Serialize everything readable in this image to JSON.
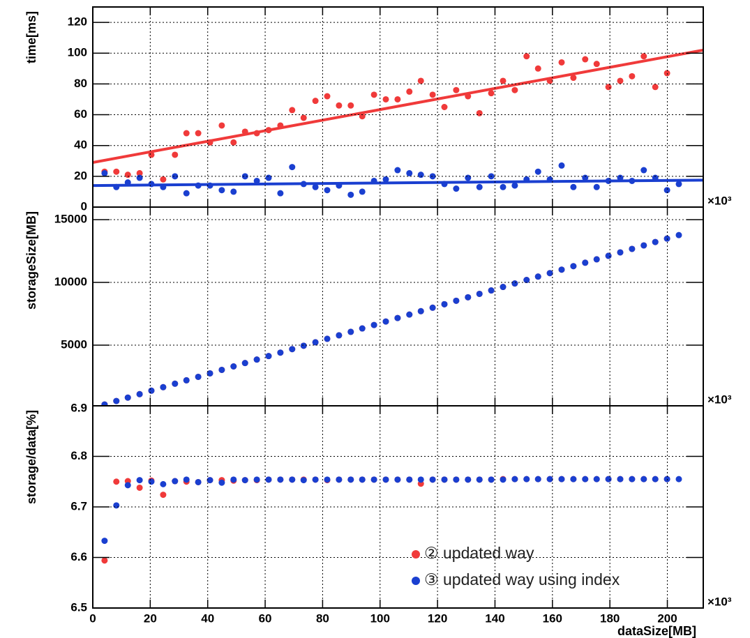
{
  "chart_data": [
    {
      "type": "scatter",
      "y_label": "time[ms]",
      "x_exponent": "×10³",
      "xlim": [
        0,
        212.5
      ],
      "xticks": [
        0,
        20,
        40,
        60,
        80,
        100,
        120,
        140,
        160,
        180,
        200
      ],
      "ylim": [
        0,
        130
      ],
      "yticks": [
        0,
        20,
        40,
        60,
        80,
        100,
        120
      ],
      "grid": true,
      "x": [
        4.1,
        8.2,
        12.2,
        16.3,
        20.4,
        24.5,
        28.6,
        32.6,
        36.7,
        40.8,
        44.9,
        49.0,
        53.0,
        57.1,
        61.2,
        65.3,
        69.4,
        73.4,
        77.5,
        81.6,
        85.7,
        89.8,
        93.8,
        97.9,
        102.0,
        106.1,
        110.2,
        114.2,
        118.3,
        122.4,
        126.5,
        130.6,
        134.6,
        138.7,
        142.8,
        146.9,
        151.0,
        155.0,
        159.1,
        163.2,
        167.3,
        171.4,
        175.4,
        179.5,
        183.6,
        187.7,
        191.8,
        195.8,
        199.9,
        204.0
      ],
      "series": [
        {
          "color": "#f03a3a",
          "values": [
            23,
            23,
            21,
            22,
            34,
            18,
            34,
            48,
            48,
            42,
            53,
            42,
            49,
            48,
            50,
            53,
            63,
            58,
            69,
            72,
            66,
            66,
            59,
            73,
            70,
            70,
            75,
            82,
            73,
            65,
            76,
            72,
            61,
            74,
            82,
            76,
            98,
            90,
            82,
            94,
            84,
            96,
            93,
            78,
            82,
            85,
            98,
            78,
            87,
            null
          ]
        },
        {
          "color": "#1a3fd0",
          "values": [
            22,
            13,
            16,
            19,
            15,
            13,
            20,
            9,
            14,
            14,
            11,
            10,
            20,
            17,
            19,
            9,
            26,
            15,
            13,
            11,
            14,
            8,
            10,
            17,
            18,
            24,
            22,
            21,
            20,
            15,
            12,
            19,
            13,
            20,
            13,
            14,
            18,
            23,
            18,
            27,
            13,
            19,
            13,
            17,
            19,
            17,
            24,
            19,
            11,
            15
          ]
        }
      ],
      "fits": [
        {
          "color": "#f03a3a",
          "x": [
            0,
            212.5
          ],
          "values": [
            29,
            102
          ]
        },
        {
          "color": "#1a3fd0",
          "x": [
            0,
            212.5
          ],
          "values": [
            14,
            17.5
          ]
        }
      ]
    },
    {
      "type": "scatter",
      "y_label": "storageSize[MB]",
      "x_exponent": "×10³",
      "xlim": [
        0,
        212.5
      ],
      "xticks": [
        0,
        20,
        40,
        60,
        80,
        100,
        120,
        140,
        160,
        180,
        200
      ],
      "ylim": [
        170,
        16000
      ],
      "yticks": [
        5000,
        10000,
        15000
      ],
      "grid": true,
      "x": [
        4.1,
        8.2,
        12.2,
        16.3,
        20.4,
        24.5,
        28.6,
        32.6,
        36.7,
        40.8,
        44.9,
        49.0,
        53.0,
        57.1,
        61.2,
        65.3,
        69.4,
        73.4,
        77.5,
        81.6,
        85.7,
        89.8,
        93.8,
        97.9,
        102.0,
        106.1,
        110.2,
        114.2,
        118.3,
        122.4,
        126.5,
        130.6,
        134.6,
        138.7,
        142.8,
        146.9,
        151.0,
        155.0,
        159.1,
        163.2,
        167.3,
        171.4,
        175.4,
        179.5,
        183.6,
        187.7,
        191.8,
        195.8,
        199.9,
        204.0
      ],
      "series": [
        {
          "color": "#f03a3a",
          "values": [
            277,
            554,
            824,
            1100,
            1377,
            1654,
            1931,
            2201,
            2477,
            2754,
            3031,
            3308,
            3578,
            3854,
            4131,
            4408,
            4685,
            4955,
            5231,
            5508,
            5785,
            6062,
            6332,
            6608,
            6885,
            7162,
            7439,
            7709,
            7985,
            8262,
            8539,
            8816,
            9086,
            9362,
            9639,
            9916,
            10193,
            10463,
            10739,
            11016,
            11293,
            11570,
            11840,
            12116,
            12393,
            12670,
            12947,
            13217,
            13493,
            null
          ]
        },
        {
          "color": "#1a3fd0",
          "values": [
            277,
            554,
            824,
            1100,
            1377,
            1654,
            1931,
            2201,
            2477,
            2754,
            3031,
            3308,
            3578,
            3854,
            4131,
            4408,
            4685,
            4955,
            5231,
            5508,
            5785,
            6062,
            6332,
            6608,
            6885,
            7162,
            7439,
            7709,
            7985,
            8262,
            8539,
            8816,
            9086,
            9362,
            9639,
            9916,
            10193,
            10463,
            10739,
            11016,
            11293,
            11570,
            11840,
            12116,
            12393,
            12670,
            12947,
            13217,
            13493,
            13770
          ]
        }
      ]
    },
    {
      "type": "scatter",
      "y_label": "storage/data[%]",
      "x_label": "dataSize[MB]",
      "x_exponent": "×10³",
      "xlim": [
        0,
        212.5
      ],
      "xticks": [
        0,
        20,
        40,
        60,
        80,
        100,
        120,
        140,
        160,
        180,
        200
      ],
      "ylim": [
        6.5,
        6.9
      ],
      "yticks": [
        6.5,
        6.6,
        6.7,
        6.8,
        6.9
      ],
      "grid": true,
      "x": [
        4.1,
        8.2,
        12.2,
        16.3,
        20.4,
        24.5,
        28.6,
        32.6,
        36.7,
        40.8,
        44.9,
        49.0,
        53.0,
        57.1,
        61.2,
        65.3,
        69.4,
        73.4,
        77.5,
        81.6,
        85.7,
        89.8,
        93.8,
        97.9,
        102.0,
        106.1,
        110.2,
        114.2,
        118.3,
        122.4,
        126.5,
        130.6,
        134.6,
        138.7,
        142.8,
        146.9,
        151.0,
        155.0,
        159.1,
        163.2,
        167.3,
        171.4,
        175.4,
        179.5,
        183.6,
        187.7,
        191.8,
        195.8,
        199.9,
        204.0
      ],
      "series": [
        {
          "name": "② updated way",
          "color": "#f03a3a",
          "values": [
            6.594,
            6.75,
            6.751,
            6.738,
            6.752,
            6.724,
            6.751,
            6.75,
            6.749,
            6.753,
            6.753,
            6.752,
            6.753,
            6.753,
            6.754,
            6.754,
            6.754,
            6.754,
            6.754,
            6.753,
            6.754,
            6.754,
            6.754,
            6.754,
            6.754,
            6.754,
            6.754,
            6.746,
            6.754,
            6.754,
            6.754,
            6.754,
            6.754,
            6.754,
            6.755,
            6.755,
            6.755,
            6.755,
            6.755,
            6.755,
            6.755,
            6.755,
            6.755,
            6.755,
            6.755,
            6.755,
            6.755,
            6.755,
            6.755,
            null
          ]
        },
        {
          "name": "③ updated way using index",
          "color": "#1a3fd0",
          "values": [
            6.633,
            6.703,
            6.743,
            6.753,
            6.75,
            6.745,
            6.751,
            6.754,
            6.749,
            6.753,
            6.748,
            6.754,
            6.753,
            6.754,
            6.754,
            6.754,
            6.754,
            6.753,
            6.754,
            6.754,
            6.754,
            6.754,
            6.754,
            6.754,
            6.754,
            6.754,
            6.754,
            6.754,
            6.754,
            6.754,
            6.754,
            6.754,
            6.754,
            6.754,
            6.754,
            6.755,
            6.755,
            6.755,
            6.755,
            6.755,
            6.755,
            6.755,
            6.755,
            6.755,
            6.755,
            6.755,
            6.755,
            6.755,
            6.755,
            6.755
          ]
        }
      ]
    }
  ]
}
